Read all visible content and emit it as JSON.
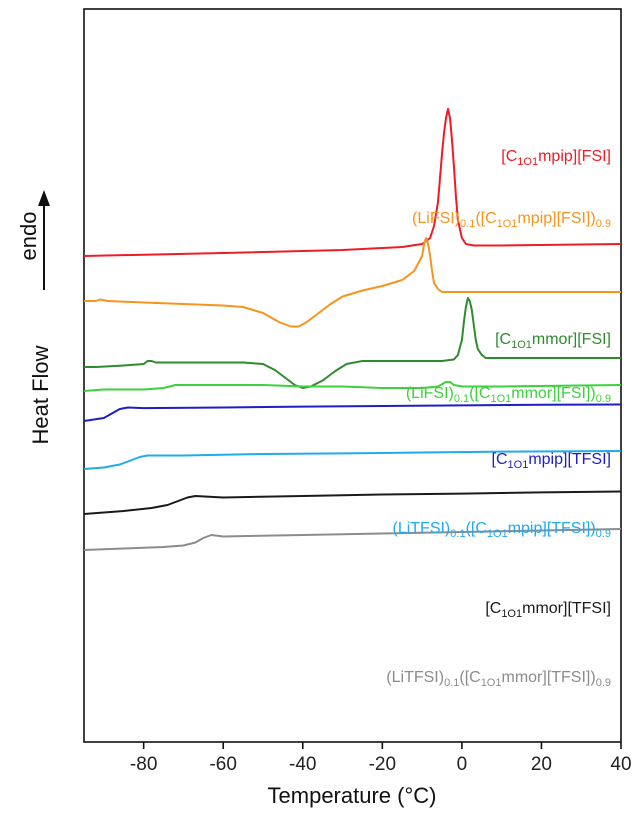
{
  "chart_data": {
    "type": "line",
    "xlabel": "Temperature (°C)",
    "ylabel": "Heat Flow",
    "direction_label": "endo",
    "xlim": [
      -95,
      40
    ],
    "xticks": [
      -80,
      -60,
      -40,
      -20,
      0,
      20,
      40
    ],
    "xtick_labels": [
      "-80",
      "-60",
      "-40",
      "-20",
      "0",
      "20",
      "40"
    ],
    "y_ticks_shown": false,
    "grid": false,
    "legend": "inline labels to the right of each curve",
    "series": [
      {
        "label_parts": [
          [
            "[C",
            ""
          ],
          [
            "1O1",
            "sub"
          ],
          [
            "mpip][FSI]",
            ""
          ]
        ],
        "color": "#ee1c25",
        "points": [
          [
            -95,
            58
          ],
          [
            -60,
            59
          ],
          [
            -30,
            60
          ],
          [
            -15,
            61
          ],
          [
            -10,
            62
          ],
          [
            -8,
            64
          ],
          [
            -7,
            68
          ],
          [
            -6,
            76
          ],
          [
            -5.5,
            84
          ],
          [
            -5,
            92
          ],
          [
            -4.5,
            99
          ],
          [
            -4,
            104
          ],
          [
            -3.5,
            107
          ],
          [
            -3,
            104
          ],
          [
            -2.5,
            97
          ],
          [
            -2,
            88
          ],
          [
            -1.5,
            78
          ],
          [
            -1,
            70
          ],
          [
            0,
            64
          ],
          [
            1,
            62
          ],
          [
            3,
            61.5
          ],
          [
            10,
            61.5
          ],
          [
            40,
            62
          ]
        ]
      },
      {
        "label_parts": [
          [
            "(LiFSI)",
            ""
          ],
          [
            "0.1",
            "sub"
          ],
          [
            "([C",
            ""
          ],
          [
            "1O1",
            "sub"
          ],
          [
            "mpip][FSI])",
            ""
          ],
          [
            "0.9",
            "sub"
          ]
        ],
        "color": "#f7941d",
        "points": [
          [
            -95,
            43
          ],
          [
            -92,
            43
          ],
          [
            -91,
            43.5
          ],
          [
            -89,
            43
          ],
          [
            -80,
            42.5
          ],
          [
            -70,
            42
          ],
          [
            -60,
            41.5
          ],
          [
            -55,
            41
          ],
          [
            -50,
            39
          ],
          [
            -46,
            36
          ],
          [
            -43,
            34.5
          ],
          [
            -41,
            34.5
          ],
          [
            -39,
            36
          ],
          [
            -36,
            39
          ],
          [
            -33,
            42
          ],
          [
            -30,
            44.5
          ],
          [
            -25,
            46.5
          ],
          [
            -20,
            48
          ],
          [
            -15,
            50
          ],
          [
            -12,
            53
          ],
          [
            -10,
            58
          ],
          [
            -9.5,
            62
          ],
          [
            -9,
            64
          ],
          [
            -8.5,
            62
          ],
          [
            -8,
            58
          ],
          [
            -7.5,
            53
          ],
          [
            -7,
            49
          ],
          [
            -6,
            47
          ],
          [
            -5,
            46
          ],
          [
            0,
            46
          ],
          [
            40,
            46
          ]
        ]
      },
      {
        "label_parts": [
          [
            "[C",
            ""
          ],
          [
            "1O1",
            "sub"
          ],
          [
            "mmor][FSI]",
            ""
          ]
        ],
        "color": "#2e8b2e",
        "points": [
          [
            -95,
            21
          ],
          [
            -92,
            21
          ],
          [
            -85,
            21.5
          ],
          [
            -80,
            22
          ],
          [
            -79,
            23
          ],
          [
            -78,
            23
          ],
          [
            -77,
            22.5
          ],
          [
            -70,
            22.5
          ],
          [
            -55,
            22.5
          ],
          [
            -50,
            22
          ],
          [
            -47,
            20
          ],
          [
            -44,
            17
          ],
          [
            -42,
            15
          ],
          [
            -40,
            14
          ],
          [
            -38,
            14.5
          ],
          [
            -35,
            16.5
          ],
          [
            -32,
            19.5
          ],
          [
            -29,
            22
          ],
          [
            -25,
            23
          ],
          [
            -15,
            23
          ],
          [
            -5,
            23
          ],
          [
            -2,
            23.5
          ],
          [
            -1,
            25
          ],
          [
            0,
            30
          ],
          [
            0.5,
            36
          ],
          [
            1,
            41
          ],
          [
            1.5,
            44
          ],
          [
            2,
            43
          ],
          [
            2.5,
            40
          ],
          [
            3,
            35
          ],
          [
            3.5,
            30
          ],
          [
            4,
            27
          ],
          [
            5,
            25
          ],
          [
            6,
            24
          ],
          [
            10,
            24
          ],
          [
            40,
            24
          ]
        ]
      },
      {
        "label_parts": [
          [
            "(LiFSI)",
            ""
          ],
          [
            "0.1",
            "sub"
          ],
          [
            "([C",
            ""
          ],
          [
            "1O1",
            "sub"
          ],
          [
            "mmor][FSI])",
            ""
          ],
          [
            "0.9",
            "sub"
          ]
        ],
        "color": "#3dd13d",
        "points": [
          [
            -95,
            13
          ],
          [
            -90,
            13.5
          ],
          [
            -80,
            13.5
          ],
          [
            -75,
            14
          ],
          [
            -72,
            15
          ],
          [
            -70,
            15
          ],
          [
            -60,
            15
          ],
          [
            -50,
            15
          ],
          [
            -40,
            14.5
          ],
          [
            -30,
            14.5
          ],
          [
            -20,
            14
          ],
          [
            -10,
            14
          ],
          [
            -6,
            14.5
          ],
          [
            -4,
            16
          ],
          [
            -3,
            16
          ],
          [
            -2,
            15
          ],
          [
            0,
            14.5
          ],
          [
            10,
            14.5
          ],
          [
            40,
            15
          ]
        ]
      },
      {
        "label_parts": [
          [
            "[C",
            ""
          ],
          [
            "1O1",
            "sub"
          ],
          [
            "mpip][TFSI]",
            ""
          ]
        ],
        "color": "#1e1ec8",
        "points": [
          [
            -95,
            3
          ],
          [
            -90,
            4
          ],
          [
            -88,
            5.5
          ],
          [
            -86,
            7
          ],
          [
            -84,
            7.5
          ],
          [
            -80,
            7.3
          ],
          [
            -60,
            7.5
          ],
          [
            -40,
            7.8
          ],
          [
            -20,
            8
          ],
          [
            0,
            8.2
          ],
          [
            20,
            8.4
          ],
          [
            40,
            8.5
          ]
        ]
      },
      {
        "label_parts": [
          [
            "(LiTFSI)",
            ""
          ],
          [
            "0.1",
            "sub"
          ],
          [
            "([C",
            ""
          ],
          [
            "1O1",
            "sub"
          ],
          [
            "mpip][TFSI])",
            ""
          ],
          [
            "0.9",
            "sub"
          ]
        ],
        "color": "#22aaee",
        "points": [
          [
            -95,
            -13
          ],
          [
            -90,
            -12.5
          ],
          [
            -86,
            -11.5
          ],
          [
            -83,
            -10
          ],
          [
            -81,
            -9
          ],
          [
            -79,
            -8.5
          ],
          [
            -70,
            -8.5
          ],
          [
            -50,
            -8
          ],
          [
            -30,
            -7.8
          ],
          [
            -10,
            -7.5
          ],
          [
            10,
            -7.2
          ],
          [
            40,
            -7
          ]
        ]
      },
      {
        "label_parts": [
          [
            "[C",
            ""
          ],
          [
            "1O1",
            "sub"
          ],
          [
            "mmor][TFSI]",
            ""
          ]
        ],
        "color": "#1a1a1a",
        "points": [
          [
            -95,
            -28
          ],
          [
            -85,
            -27
          ],
          [
            -78,
            -26
          ],
          [
            -74,
            -25
          ],
          [
            -71,
            -23.5
          ],
          [
            -69,
            -22.5
          ],
          [
            -67,
            -22
          ],
          [
            -60,
            -22.5
          ],
          [
            -40,
            -22
          ],
          [
            -20,
            -21.5
          ],
          [
            0,
            -21.2
          ],
          [
            20,
            -20.8
          ],
          [
            40,
            -20.5
          ]
        ]
      },
      {
        "label_parts": [
          [
            "(LiTFSI)",
            ""
          ],
          [
            "0.1",
            "sub"
          ],
          [
            "([C",
            ""
          ],
          [
            "1O1",
            "sub"
          ],
          [
            "mmor][TFSI])",
            ""
          ],
          [
            "0.9",
            "sub"
          ]
        ],
        "color": "#8c8c8c",
        "points": [
          [
            -95,
            -40
          ],
          [
            -85,
            -39.5
          ],
          [
            -75,
            -39
          ],
          [
            -70,
            -38.5
          ],
          [
            -67,
            -37.5
          ],
          [
            -65,
            -36
          ],
          [
            -63,
            -35
          ],
          [
            -60,
            -35.5
          ],
          [
            -40,
            -35
          ],
          [
            -20,
            -34.5
          ],
          [
            0,
            -34
          ],
          [
            20,
            -33.5
          ],
          [
            40,
            -33
          ]
        ]
      }
    ]
  }
}
